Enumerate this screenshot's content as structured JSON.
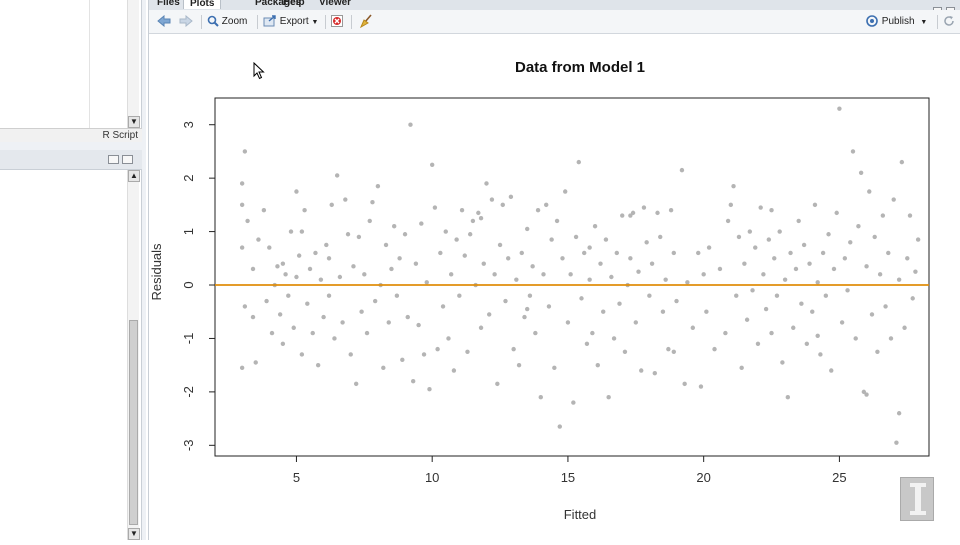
{
  "tabs": [
    {
      "label": "Files",
      "active": false
    },
    {
      "label": "Plots",
      "active": true
    },
    {
      "label": "Packages",
      "active": false
    },
    {
      "label": "Help",
      "active": false
    },
    {
      "label": "Viewer",
      "active": false
    }
  ],
  "toolbar": {
    "zoom_label": "Zoom",
    "export_label": "Export",
    "publish_label": "Publish"
  },
  "editor": {
    "script_type": "R Script"
  },
  "icons": {
    "back": "back-arrow-icon",
    "forward": "forward-arrow-icon",
    "zoom": "magnifier-icon",
    "export": "export-icon",
    "remove": "remove-plot-icon",
    "clear": "broom-icon",
    "publish": "publish-icon",
    "refresh": "refresh-icon"
  },
  "colors": {
    "points": "#b4b4b4",
    "hline": "#e08e0b"
  },
  "chart_data": {
    "type": "scatter",
    "title": "Data from Model 1",
    "xlabel": "Fitted",
    "ylabel": "Residuals",
    "xlim": [
      2,
      28.3
    ],
    "ylim": [
      -3.2,
      3.5
    ],
    "xticks": [
      5,
      10,
      15,
      20,
      25
    ],
    "yticks": [
      -3,
      -2,
      -1,
      0,
      1,
      2,
      3
    ],
    "hline": 0,
    "points": [
      [
        3.0,
        1.9
      ],
      [
        3.1,
        2.5
      ],
      [
        3.0,
        1.5
      ],
      [
        3.2,
        1.2
      ],
      [
        3.0,
        0.7
      ],
      [
        3.1,
        -0.4
      ],
      [
        3.0,
        -1.55
      ],
      [
        3.4,
        0.3
      ],
      [
        3.5,
        -1.45
      ],
      [
        3.6,
        0.85
      ],
      [
        3.4,
        -0.6
      ],
      [
        3.8,
        1.4
      ],
      [
        3.9,
        -0.3
      ],
      [
        4.0,
        0.7
      ],
      [
        4.1,
        -0.9
      ],
      [
        4.2,
        0.0
      ],
      [
        4.3,
        0.35
      ],
      [
        4.4,
        -0.55
      ],
      [
        4.5,
        -1.1
      ],
      [
        4.6,
        0.2
      ],
      [
        4.7,
        -0.2
      ],
      [
        4.8,
        1.0
      ],
      [
        4.9,
        -0.8
      ],
      [
        5.0,
        1.75
      ],
      [
        5.1,
        0.55
      ],
      [
        5.2,
        1.0
      ],
      [
        5.2,
        -1.3
      ],
      [
        5.3,
        1.4
      ],
      [
        5.4,
        -0.35
      ],
      [
        5.5,
        0.3
      ],
      [
        5.6,
        -0.9
      ],
      [
        5.7,
        0.6
      ],
      [
        5.8,
        -1.5
      ],
      [
        5.9,
        0.1
      ],
      [
        6.0,
        -0.6
      ],
      [
        6.1,
        0.75
      ],
      [
        6.2,
        -0.2
      ],
      [
        6.3,
        1.5
      ],
      [
        6.4,
        -1.0
      ],
      [
        6.5,
        2.05
      ],
      [
        6.6,
        0.15
      ],
      [
        6.7,
        -0.7
      ],
      [
        6.8,
        1.6
      ],
      [
        6.9,
        0.95
      ],
      [
        7.0,
        -1.3
      ],
      [
        7.1,
        0.35
      ],
      [
        7.2,
        -1.85
      ],
      [
        7.3,
        0.9
      ],
      [
        7.4,
        -0.5
      ],
      [
        7.5,
        0.2
      ],
      [
        7.6,
        -0.9
      ],
      [
        7.7,
        1.2
      ],
      [
        7.8,
        1.55
      ],
      [
        7.9,
        -0.3
      ],
      [
        8.0,
        1.85
      ],
      [
        8.1,
        0.0
      ],
      [
        8.2,
        -1.55
      ],
      [
        8.3,
        0.75
      ],
      [
        8.4,
        -0.7
      ],
      [
        8.5,
        0.3
      ],
      [
        8.6,
        1.1
      ],
      [
        8.7,
        -0.2
      ],
      [
        8.8,
        0.5
      ],
      [
        8.9,
        -1.4
      ],
      [
        9.0,
        0.95
      ],
      [
        9.1,
        -0.6
      ],
      [
        9.2,
        3.0
      ],
      [
        9.3,
        -1.8
      ],
      [
        9.4,
        0.4
      ],
      [
        9.5,
        -0.75
      ],
      [
        9.6,
        1.15
      ],
      [
        9.7,
        -1.3
      ],
      [
        9.8,
        0.05
      ],
      [
        9.9,
        -1.95
      ],
      [
        10.0,
        2.25
      ],
      [
        10.1,
        1.45
      ],
      [
        10.2,
        -1.2
      ],
      [
        10.3,
        0.6
      ],
      [
        10.4,
        -0.4
      ],
      [
        10.5,
        1.0
      ],
      [
        10.6,
        -1.0
      ],
      [
        10.7,
        0.2
      ],
      [
        10.8,
        -1.6
      ],
      [
        10.9,
        0.85
      ],
      [
        11.0,
        -0.2
      ],
      [
        11.1,
        1.4
      ],
      [
        11.2,
        0.55
      ],
      [
        11.3,
        -1.25
      ],
      [
        11.4,
        0.95
      ],
      [
        11.5,
        1.2
      ],
      [
        11.6,
        0.0
      ],
      [
        11.7,
        1.35
      ],
      [
        11.8,
        -0.8
      ],
      [
        11.9,
        0.4
      ],
      [
        12.0,
        1.9
      ],
      [
        12.1,
        -0.55
      ],
      [
        12.2,
        1.6
      ],
      [
        12.3,
        0.2
      ],
      [
        12.4,
        -1.85
      ],
      [
        12.5,
        0.75
      ],
      [
        12.6,
        1.5
      ],
      [
        12.7,
        -0.3
      ],
      [
        12.8,
        0.5
      ],
      [
        12.9,
        1.65
      ],
      [
        13.0,
        -1.2
      ],
      [
        13.1,
        0.1
      ],
      [
        13.2,
        -1.5
      ],
      [
        13.3,
        0.6
      ],
      [
        13.4,
        -0.6
      ],
      [
        13.5,
        1.05
      ],
      [
        13.6,
        -0.2
      ],
      [
        13.7,
        0.35
      ],
      [
        13.8,
        -0.9
      ],
      [
        13.9,
        1.4
      ],
      [
        14.0,
        -2.1
      ],
      [
        14.1,
        0.2
      ],
      [
        14.2,
        1.5
      ],
      [
        14.3,
        -0.4
      ],
      [
        14.4,
        0.85
      ],
      [
        14.5,
        -1.55
      ],
      [
        14.6,
        1.2
      ],
      [
        14.7,
        -2.65
      ],
      [
        14.8,
        0.5
      ],
      [
        14.9,
        1.75
      ],
      [
        15.0,
        -0.7
      ],
      [
        15.1,
        0.2
      ],
      [
        15.2,
        -2.2
      ],
      [
        15.3,
        0.9
      ],
      [
        15.4,
        2.3
      ],
      [
        15.5,
        -0.25
      ],
      [
        15.6,
        0.6
      ],
      [
        15.7,
        -1.1
      ],
      [
        15.8,
        0.1
      ],
      [
        15.9,
        -0.9
      ],
      [
        16.0,
        1.1
      ],
      [
        16.1,
        -1.5
      ],
      [
        16.2,
        0.4
      ],
      [
        16.3,
        -0.5
      ],
      [
        16.4,
        0.85
      ],
      [
        16.5,
        -2.1
      ],
      [
        16.6,
        0.15
      ],
      [
        16.7,
        -1.0
      ],
      [
        16.8,
        0.6
      ],
      [
        16.9,
        -0.35
      ],
      [
        17.0,
        1.3
      ],
      [
        17.1,
        -1.25
      ],
      [
        17.2,
        0.0
      ],
      [
        17.3,
        0.5
      ],
      [
        17.4,
        1.35
      ],
      [
        17.5,
        -0.7
      ],
      [
        17.6,
        0.25
      ],
      [
        17.7,
        -1.6
      ],
      [
        17.8,
        1.45
      ],
      [
        17.9,
        0.8
      ],
      [
        18.0,
        -0.2
      ],
      [
        18.1,
        0.4
      ],
      [
        18.2,
        -1.65
      ],
      [
        18.3,
        1.35
      ],
      [
        18.4,
        0.9
      ],
      [
        18.5,
        -0.5
      ],
      [
        18.6,
        0.1
      ],
      [
        18.7,
        -1.2
      ],
      [
        18.8,
        1.4
      ],
      [
        18.9,
        0.6
      ],
      [
        19.0,
        -0.3
      ],
      [
        19.2,
        2.15
      ],
      [
        19.3,
        -1.85
      ],
      [
        19.4,
        0.05
      ],
      [
        19.6,
        -0.8
      ],
      [
        19.8,
        0.6
      ],
      [
        19.9,
        -1.9
      ],
      [
        20.0,
        0.2
      ],
      [
        20.1,
        -0.5
      ],
      [
        20.2,
        0.7
      ],
      [
        20.4,
        -1.2
      ],
      [
        20.6,
        0.3
      ],
      [
        20.8,
        -0.9
      ],
      [
        21.0,
        1.5
      ],
      [
        21.1,
        1.85
      ],
      [
        21.2,
        -0.2
      ],
      [
        21.3,
        0.9
      ],
      [
        21.4,
        -1.55
      ],
      [
        21.5,
        0.4
      ],
      [
        21.6,
        -0.65
      ],
      [
        21.7,
        1.0
      ],
      [
        21.8,
        -0.1
      ],
      [
        21.9,
        0.7
      ],
      [
        22.0,
        -1.1
      ],
      [
        22.1,
        1.45
      ],
      [
        22.2,
        0.2
      ],
      [
        22.3,
        -0.45
      ],
      [
        22.4,
        0.85
      ],
      [
        22.5,
        -0.9
      ],
      [
        22.6,
        0.5
      ],
      [
        22.7,
        -0.2
      ],
      [
        22.8,
        1.0
      ],
      [
        22.9,
        -1.45
      ],
      [
        23.0,
        0.1
      ],
      [
        23.1,
        -2.1
      ],
      [
        23.2,
        0.6
      ],
      [
        23.3,
        -0.8
      ],
      [
        23.4,
        0.3
      ],
      [
        23.5,
        1.2
      ],
      [
        23.6,
        -0.35
      ],
      [
        23.7,
        0.75
      ],
      [
        23.8,
        -1.1
      ],
      [
        23.9,
        0.4
      ],
      [
        24.0,
        -0.5
      ],
      [
        24.1,
        1.5
      ],
      [
        24.2,
        0.05
      ],
      [
        24.3,
        -1.3
      ],
      [
        24.4,
        0.6
      ],
      [
        24.5,
        -0.2
      ],
      [
        24.6,
        0.95
      ],
      [
        24.7,
        -1.6
      ],
      [
        24.8,
        0.3
      ],
      [
        24.9,
        1.35
      ],
      [
        25.0,
        3.3
      ],
      [
        25.1,
        -0.7
      ],
      [
        25.2,
        0.5
      ],
      [
        25.3,
        -0.1
      ],
      [
        25.4,
        0.8
      ],
      [
        25.5,
        2.5
      ],
      [
        25.6,
        -1.0
      ],
      [
        25.7,
        1.1
      ],
      [
        25.8,
        2.1
      ],
      [
        25.9,
        -2.0
      ],
      [
        26.0,
        0.35
      ],
      [
        26.1,
        1.75
      ],
      [
        26.2,
        -0.55
      ],
      [
        26.3,
        0.9
      ],
      [
        26.4,
        -1.25
      ],
      [
        26.5,
        0.2
      ],
      [
        26.6,
        1.3
      ],
      [
        26.7,
        -0.4
      ],
      [
        26.8,
        0.6
      ],
      [
        26.9,
        -1.0
      ],
      [
        27.0,
        1.6
      ],
      [
        27.1,
        -2.95
      ],
      [
        27.2,
        0.1
      ],
      [
        27.3,
        2.3
      ],
      [
        27.4,
        -0.8
      ],
      [
        27.5,
        0.5
      ],
      [
        27.6,
        1.3
      ],
      [
        27.7,
        -0.25
      ],
      [
        27.8,
        0.25
      ],
      [
        27.9,
        0.85
      ],
      [
        27.2,
        -2.4
      ],
      [
        26.0,
        -2.05
      ],
      [
        22.5,
        1.4
      ],
      [
        20.9,
        1.2
      ],
      [
        17.3,
        1.3
      ],
      [
        11.8,
        1.25
      ],
      [
        6.2,
        0.5
      ],
      [
        4.5,
        0.4
      ],
      [
        5.0,
        0.15
      ],
      [
        13.5,
        -0.45
      ],
      [
        15.8,
        0.7
      ],
      [
        18.9,
        -1.25
      ],
      [
        24.2,
        -0.95
      ]
    ]
  }
}
